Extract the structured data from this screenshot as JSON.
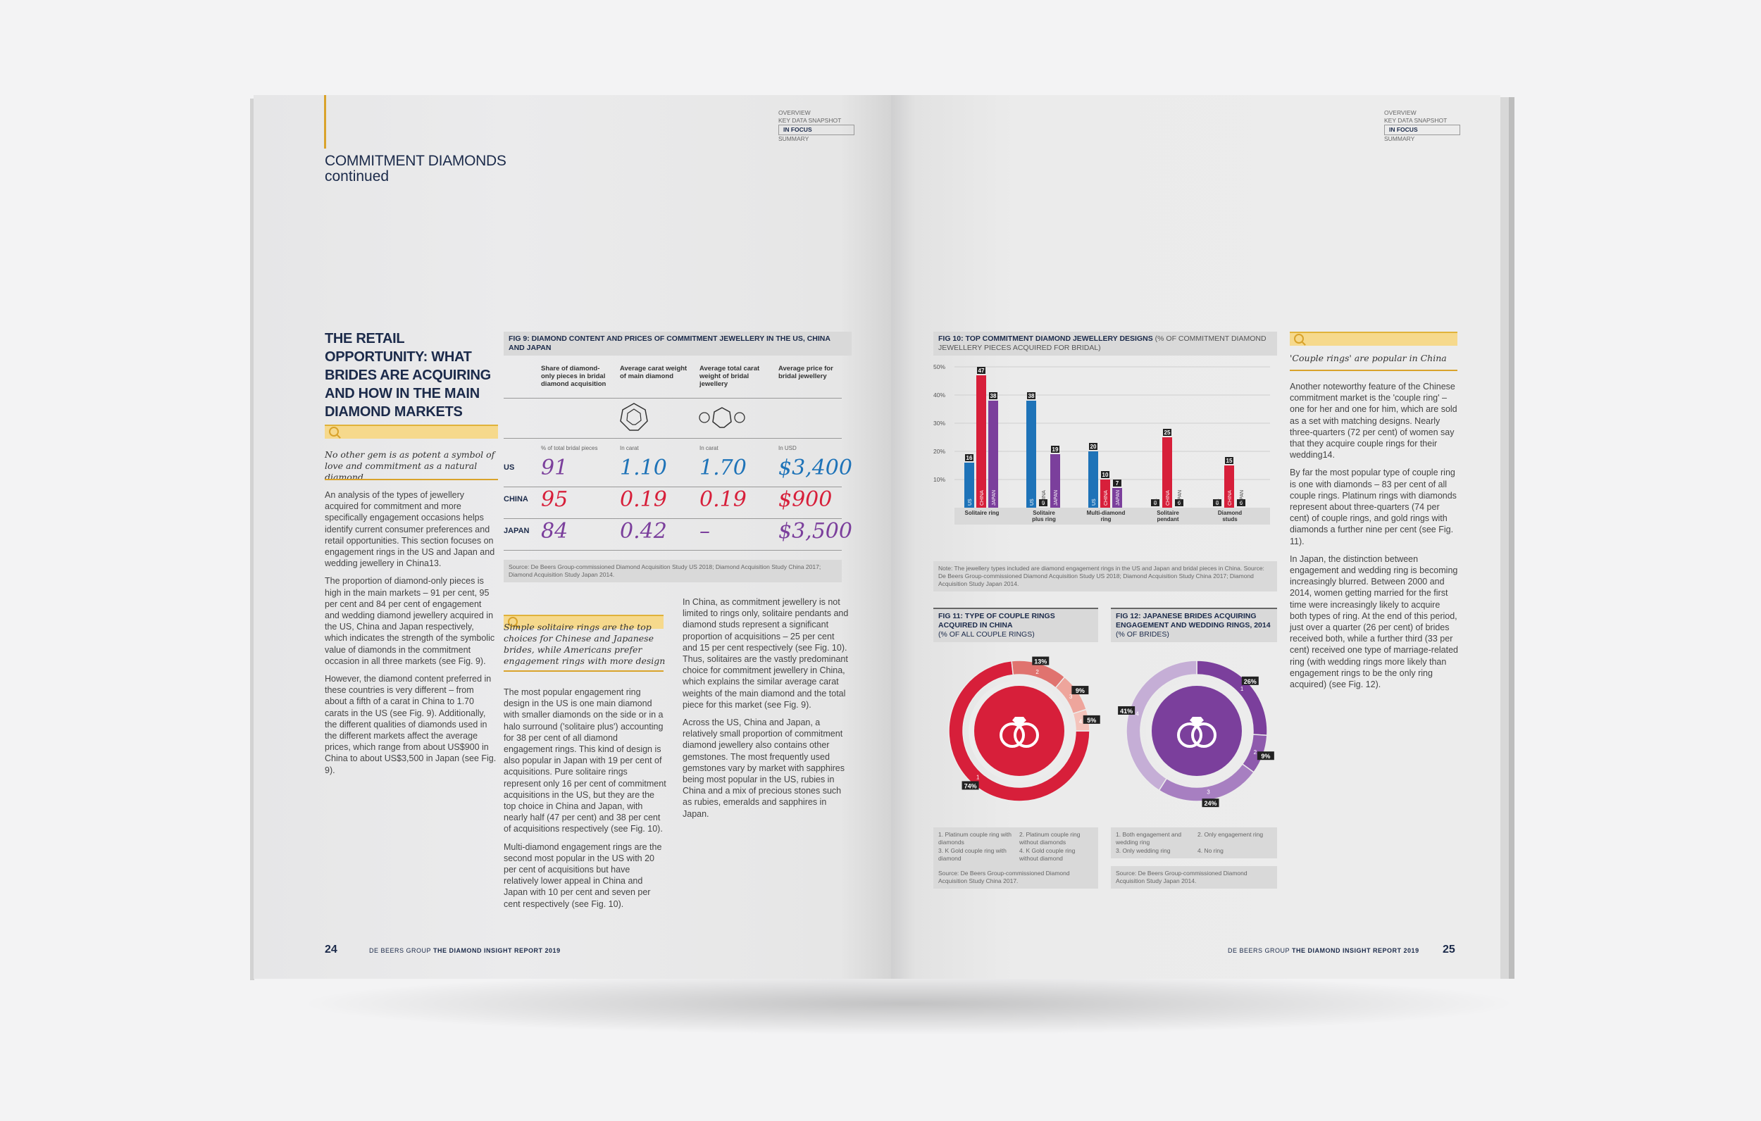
{
  "left": {
    "nav": {
      "items": [
        "OVERVIEW",
        "KEY DATA SNAPSHOT",
        "IN FOCUS",
        "SUMMARY"
      ],
      "active": "IN FOCUS"
    },
    "section_title": "COMMITMENT DIAMONDS",
    "section_subtitle": "continued",
    "headline": "THE RETAIL OPPORTUNITY: WHAT BRIDES ARE ACQUIRING AND HOW IN THE MAIN DIAMOND MARKETS",
    "quote1": "No other gem is as potent a symbol of love and commitment as a natural diamond",
    "col1": [
      "An analysis of the types of jewellery acquired for commitment and more specifically engagement occasions helps identify current consumer preferences and retail opportunities. This section focuses on engagement rings in the US and Japan and wedding jewellery in China13.",
      "The proportion of diamond-only pieces is high in the main markets – 91 per cent, 95 per cent and 84 per cent of engagement and wedding diamond jewellery acquired in the US, China and Japan respectively, which indicates the strength of the symbolic value of diamonds in the commitment occasion in all three markets (see Fig. 9).",
      "However, the diamond content preferred in these countries is very different – from about a fifth of a carat in China to 1.70 carats in the US (see Fig. 9). Additionally, the different qualities of diamonds used in the different markets affect the average prices, which range from about US$900 in China to about US$3,500 in Japan (see Fig. 9)."
    ],
    "fig9": {
      "title": "FIG 9: DIAMOND CONTENT AND PRICES OF COMMITMENT JEWELLERY IN THE US, CHINA AND JAPAN",
      "headers": [
        "Share of diamond-only pieces in bridal diamond acquisition",
        "Average carat weight of main diamond",
        "Average total carat weight of bridal jewellery",
        "Average price for bridal jewellery"
      ],
      "units": [
        "% of total bridal pieces",
        "In carat",
        "In carat",
        "In USD"
      ],
      "rows": [
        {
          "label": "US",
          "v1": "91",
          "v2": "1.10",
          "v3": "1.70",
          "v4": "$3,400"
        },
        {
          "label": "CHINA",
          "v1": "95",
          "v2": "0.19",
          "v3": "0.19",
          "v4": "$900"
        },
        {
          "label": "JAPAN",
          "v1": "84",
          "v2": "0.42",
          "v3": "–",
          "v4": "$3,500"
        }
      ],
      "source": "Source: De Beers Group-commissioned Diamond Acquisition Study US 2018; Diamond Acquisition Study China 2017; Diamond Acquisition Study Japan 2014."
    },
    "quote2": "Simple solitaire rings are the top choices for Chinese and Japanese brides, while Americans prefer engagement rings with more design",
    "col2": [
      "The most popular engagement ring design in the US is one main diamond with smaller diamonds on the side or in a halo surround ('solitaire plus') accounting for 38 per cent of all diamond engagement rings. This kind of design is also popular in Japan with 19 per cent of acquisitions. Pure solitaire rings represent only 16 per cent of commitment acquisitions in the US, but they are the top choice in China and Japan, with nearly half (47 per cent) and 38 per cent of acquisitions respectively (see Fig. 10).",
      "Multi-diamond engagement rings are the second most popular in the US with 20 per cent of acquisitions but have relatively lower appeal in China and Japan with 10 per cent and seven per cent respectively (see Fig. 10)."
    ],
    "col3": [
      "In China, as commitment jewellery is not limited to rings only, solitaire pendants and diamond studs represent a significant proportion of acquisitions – 25 per cent and 15 per cent respectively (see Fig. 10). Thus, solitaires are the vastly predominant choice for commitment jewellery in China, which explains the similar average carat weights of the main diamond and the total piece for this market (see Fig. 9).",
      "Across the US, China and Japan, a relatively small proportion of commitment diamond jewellery also contains other gemstones. The most frequently used gemstones vary by market with sapphires being most popular in the US, rubies in China and a mix of precious stones such as rubies, emeralds and sapphires in Japan."
    ],
    "page_number": "24",
    "footer_brand": "DE BEERS GROUP",
    "footer_title": "THE DIAMOND INSIGHT REPORT 2019"
  },
  "right": {
    "nav": {
      "items": [
        "OVERVIEW",
        "KEY DATA SNAPSHOT",
        "IN FOCUS",
        "SUMMARY"
      ],
      "active": "IN FOCUS"
    },
    "fig10": {
      "title_bold": "FIG 10: TOP COMMITMENT DIAMOND JEWELLERY DESIGNS",
      "title_light": "(% OF COMMITMENT DIAMOND JEWELLERY PIECES ACQUIRED FOR BRIDAL)",
      "note": "Note: The jewellery types included are diamond engagement rings in the US and Japan and bridal pieces in China. Source: De Beers Group-commissioned Diamond Acquisition Study US 2018; Diamond Acquisition Study China 2017; Diamond Acquisition Study Japan 2014."
    },
    "chart_data": {
      "type": "bar",
      "title": "FIG 10: TOP COMMITMENT DIAMOND JEWELLERY DESIGNS",
      "categories": [
        "Solitaire ring",
        "Solitaire plus ring",
        "Multi-diamond ring",
        "Solitaire pendant",
        "Diamond studs"
      ],
      "series": [
        {
          "name": "US",
          "color": "#1e73b8",
          "values": [
            16,
            38,
            20,
            0,
            0
          ]
        },
        {
          "name": "CHINA",
          "color": "#d71f3a",
          "values": [
            47,
            0,
            10,
            25,
            15
          ]
        },
        {
          "name": "JAPAN",
          "color": "#7b3f9c",
          "values": [
            38,
            19,
            7,
            0,
            0
          ]
        }
      ],
      "y_ticks": [
        "10%",
        "20%",
        "30%",
        "40%",
        "50%"
      ],
      "ylim": [
        0,
        50
      ]
    },
    "fig11": {
      "title": "FIG 11: TYPE OF COUPLE RINGS ACQUIRED IN CHINA",
      "subtitle": "(% OF ALL COUPLE RINGS)",
      "segments": [
        {
          "id": "1",
          "label": "74%",
          "value": 74,
          "color": "#d71f3a"
        },
        {
          "id": "2",
          "label": "13%",
          "value": 13,
          "color": "#e0736f"
        },
        {
          "id": "3",
          "label": "9%",
          "value": 9,
          "color": "#eea59c"
        },
        {
          "id": "4",
          "label": "5%",
          "value": 5,
          "color": "#f4c3bb"
        }
      ],
      "legend": [
        "1. Platinum couple ring with diamonds",
        "2. Platinum couple ring without diamonds",
        "3. K Gold couple ring with diamond",
        "4. K Gold couple ring without diamond"
      ],
      "source": "Source: De Beers Group-commissioned Diamond Acquisition Study China 2017."
    },
    "fig12": {
      "title": "FIG 12: JAPANESE BRIDES ACQUIRING ENGAGEMENT AND WEDDING RINGS, 2014",
      "subtitle": "(% OF BRIDES)",
      "segments": [
        {
          "id": "1",
          "label": "26%",
          "value": 26,
          "color": "#7b3f9c"
        },
        {
          "id": "2",
          "label": "9%",
          "value": 9,
          "color": "#8e5aad"
        },
        {
          "id": "3",
          "label": "24%",
          "value": 24,
          "color": "#a77fc1"
        },
        {
          "id": "4",
          "label": "41%",
          "value": 41,
          "color": "#c5aed6"
        }
      ],
      "legend": [
        "1. Both engagement and wedding ring",
        "2. Only engagement ring",
        "3. Only wedding ring",
        "4. No ring"
      ],
      "source": "Source: De Beers Group-commissioned Diamond Acquisition Study Japan 2014."
    },
    "sidebar_quote": "'Couple rings' are popular in China",
    "sidebar": [
      "Another noteworthy feature of the Chinese commitment market is the 'couple ring' – one for her and one for him, which are sold as a set with matching designs. Nearly three-quarters (72 per cent) of women say that they acquire couple rings for their wedding14.",
      "By far the most popular type of couple ring is one with diamonds – 83 per cent of all couple rings. Platinum rings with diamonds represent about three-quarters (74 per cent) of couple rings, and gold rings with diamonds a further nine per cent (see Fig. 11).",
      "In Japan, the distinction between engagement and wedding ring is becoming increasingly blurred. Between 2000 and 2014, women getting married for the first time were increasingly likely to acquire both types of ring. At the end of this period, just over a quarter (26 per cent) of brides received both, while a further third (33 per cent) received one type of marriage-related ring (with wedding rings more likely than engagement rings to be the only ring acquired) (see Fig. 12)."
    ],
    "page_number": "25",
    "footer_brand": "DE BEERS GROUP",
    "footer_title": "THE DIAMOND INSIGHT REPORT 2019"
  }
}
